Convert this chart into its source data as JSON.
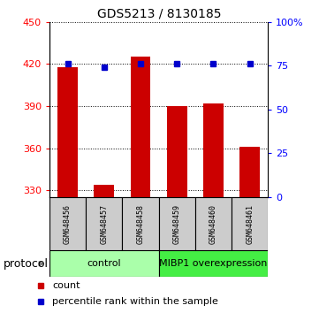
{
  "title": "GDS5213 / 8130185",
  "samples": [
    "GSM648456",
    "GSM648457",
    "GSM648458",
    "GSM648459",
    "GSM648460",
    "GSM648461"
  ],
  "counts": [
    418,
    334,
    425,
    390,
    392,
    361
  ],
  "percentile_ranks": [
    76,
    74,
    76,
    76,
    76,
    76
  ],
  "ylim_left": [
    325,
    450
  ],
  "ylim_right": [
    0,
    100
  ],
  "yticks_left": [
    330,
    360,
    390,
    420,
    450
  ],
  "yticks_right": [
    0,
    25,
    50,
    75,
    100
  ],
  "ytick_labels_right": [
    "0",
    "25",
    "50",
    "75",
    "100%"
  ],
  "bar_color": "#cc0000",
  "dot_color": "#0000cc",
  "bar_bottom": 325,
  "groups": [
    {
      "label": "control",
      "start": 0,
      "end": 3,
      "color": "#aaffaa"
    },
    {
      "label": "MIBP1 overexpression",
      "start": 3,
      "end": 6,
      "color": "#44ee44"
    }
  ],
  "legend_items": [
    {
      "label": "count",
      "color": "#cc0000"
    },
    {
      "label": "percentile rank within the sample",
      "color": "#0000cc"
    }
  ],
  "protocol_label": "protocol",
  "sample_box_color": "#cccccc",
  "title_fontsize": 10,
  "axis_fontsize": 8,
  "sample_fontsize": 6,
  "group_fontsize": 8,
  "legend_fontsize": 8
}
